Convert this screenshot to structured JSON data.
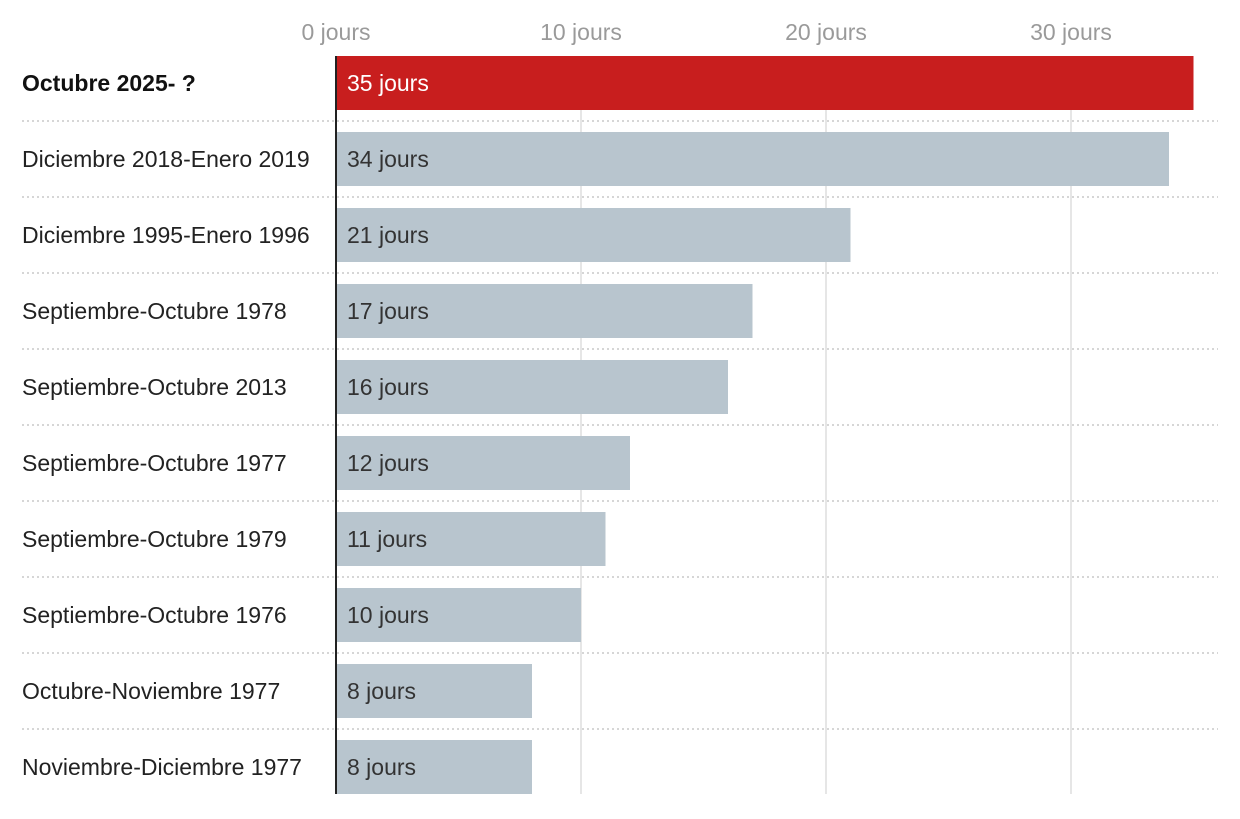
{
  "chart_data": {
    "type": "bar",
    "orientation": "horizontal",
    "title": "",
    "xlabel": "",
    "ylabel": "",
    "xlim": [
      0,
      36
    ],
    "grid": true,
    "x_ticks": [
      0,
      10,
      20,
      30
    ],
    "x_tick_labels": [
      "0 jours",
      "10 jours",
      "20 jours",
      "30 jours"
    ],
    "categories": [
      "Octubre 2025- ?",
      "Diciembre 2018-Enero 2019",
      "Diciembre 1995-Enero 1996",
      "Septiembre-Octubre 1978",
      "Septiembre-Octubre 2013",
      "Septiembre-Octubre 1977",
      "Septiembre-Octubre 1979",
      "Septiembre-Octubre 1976",
      "Octubre-Noviembre 1977",
      "Noviembre-Diciembre 1977"
    ],
    "values": [
      35,
      34,
      21,
      17,
      16,
      12,
      11,
      10,
      8,
      8
    ],
    "value_labels": [
      "35 jours",
      "34 jours",
      "21 jours",
      "17 jours",
      "16 jours",
      "12 jours",
      "11 jours",
      "10 jours",
      "8 jours",
      "8 jours"
    ],
    "highlight_index": 0,
    "colors": {
      "highlight": "#c81e1e",
      "default": "#b8c5ce"
    }
  }
}
